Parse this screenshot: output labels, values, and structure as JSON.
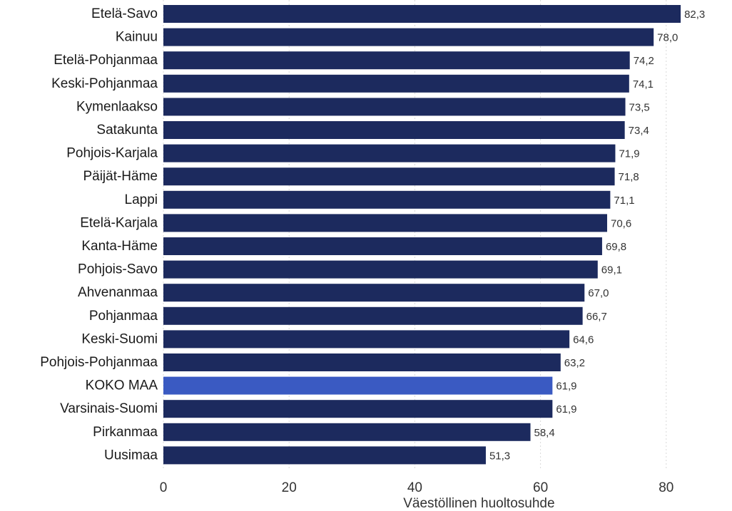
{
  "chart_data": {
    "type": "bar",
    "orientation": "horizontal",
    "categories": [
      "Etelä-Savo",
      "Kainuu",
      "Etelä-Pohjanmaa",
      "Keski-Pohjanmaa",
      "Kymenlaakso",
      "Satakunta",
      "Pohjois-Karjala",
      "Päijät-Häme",
      "Lappi",
      "Etelä-Karjala",
      "Kanta-Häme",
      "Pohjois-Savo",
      "Ahvenanmaa",
      "Pohjanmaa",
      "Keski-Suomi",
      "Pohjois-Pohjanmaa",
      "KOKO MAA",
      "Varsinais-Suomi",
      "Pirkanmaa",
      "Uusimaa"
    ],
    "values": [
      82.3,
      78.0,
      74.2,
      74.1,
      73.5,
      73.4,
      71.9,
      71.8,
      71.1,
      70.6,
      69.8,
      69.1,
      67.0,
      66.7,
      64.6,
      63.2,
      61.9,
      61.9,
      58.4,
      51.3
    ],
    "value_labels": [
      "82,3",
      "78,0",
      "74,2",
      "74,1",
      "73,5",
      "73,4",
      "71,9",
      "71,8",
      "71,1",
      "70,6",
      "69,8",
      "69,1",
      "67,0",
      "66,7",
      "64,6",
      "63,2",
      "61,9",
      "61,9",
      "58,4",
      "51,3"
    ],
    "highlight_category": "KOKO MAA",
    "xlabel": "Väestöllinen huoltosuhde",
    "ylabel": "",
    "title": "",
    "xlim": [
      0,
      90
    ],
    "xticks": [
      0,
      20,
      40,
      60,
      80
    ],
    "xtick_labels": [
      "0",
      "20",
      "40",
      "60",
      "80"
    ],
    "grid": "vertical dotted",
    "colors": {
      "bar": "#1c2a5e",
      "highlight": "#3a5ac2",
      "grid": "#d9d9d9"
    }
  }
}
